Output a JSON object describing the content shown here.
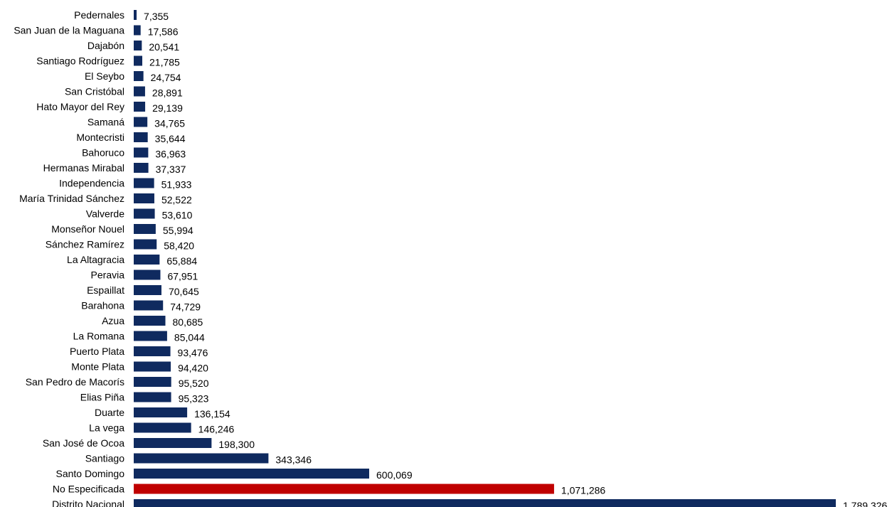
{
  "chart_data": {
    "type": "bar",
    "orientation": "horizontal",
    "title": "",
    "xlabel": "",
    "ylabel": "",
    "grid": false,
    "legend": "none",
    "xlim": [
      0,
      1789326
    ],
    "categories": [
      "Pedernales",
      "San Juan de la Maguana",
      "Dajabón",
      "Santiago Rodríguez",
      "El Seybo",
      "San Cristóbal",
      "Hato Mayor del Rey",
      "Samaná",
      "Montecristi",
      "Bahoruco",
      "Hermanas Mirabal",
      "Independencia",
      "María Trinidad Sánchez",
      "Valverde",
      "Monseñor Nouel",
      "Sánchez Ramírez",
      "La Altagracia",
      "Peravia",
      "Espaillat",
      "Barahona",
      "Azua",
      "La Romana",
      "Puerto Plata",
      "Monte Plata",
      "San Pedro de Macorís",
      "Elias Piña",
      "Duarte",
      "La vega",
      "San José de Ocoa",
      "Santiago",
      "Santo Domingo",
      "No Especificada",
      "Distrito Nacional"
    ],
    "values": [
      7355,
      17586,
      20541,
      21785,
      24754,
      28891,
      29139,
      34765,
      35644,
      36963,
      37337,
      51933,
      52522,
      53610,
      55994,
      58420,
      65884,
      67951,
      70645,
      74729,
      80685,
      85044,
      93476,
      94420,
      95520,
      95323,
      136154,
      146246,
      198300,
      343346,
      600069,
      1071286,
      1789326
    ],
    "value_labels": [
      "7,355",
      "17,586",
      "20,541",
      "21,785",
      "24,754",
      "28,891",
      "29,139",
      "34,765",
      "35,644",
      "36,963",
      "37,337",
      "51,933",
      "52,522",
      "53,610",
      "55,994",
      "58,420",
      "65,884",
      "67,951",
      "70,645",
      "74,729",
      "80,685",
      "85,044",
      "93,476",
      "94,420",
      "95,520",
      "95,323",
      "136,154",
      "146,246",
      "198,300",
      "343,346",
      "600,069",
      "1,071,286",
      "1,789,326"
    ],
    "bar_color": "#0f2a5f",
    "highlight_color": "#c00000",
    "highlight_category": "No Especificada"
  }
}
